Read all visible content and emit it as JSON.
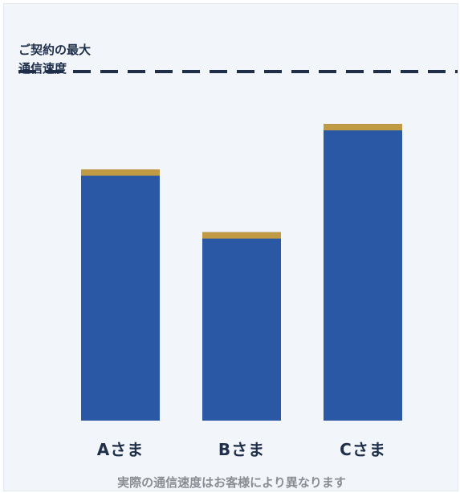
{
  "chart_data": {
    "type": "bar",
    "categories": [
      "Aさま",
      "Bさま",
      "Cさま"
    ],
    "values": [
      72,
      54,
      85
    ],
    "ylim": [
      0,
      100
    ],
    "reference_line": {
      "label_lines": [
        "ご契約の最大",
        "通信速度"
      ],
      "value": 100,
      "style": "dashed"
    },
    "caption": "実際の通信速度はお客様により異なります",
    "grid": false
  },
  "colors": {
    "bar": "#2b58a5",
    "bar_cap": "#c19a44",
    "reference_line": "#1f2f4a",
    "panel_background": "#f2f5fa",
    "caption_text": "#8a8d92"
  }
}
